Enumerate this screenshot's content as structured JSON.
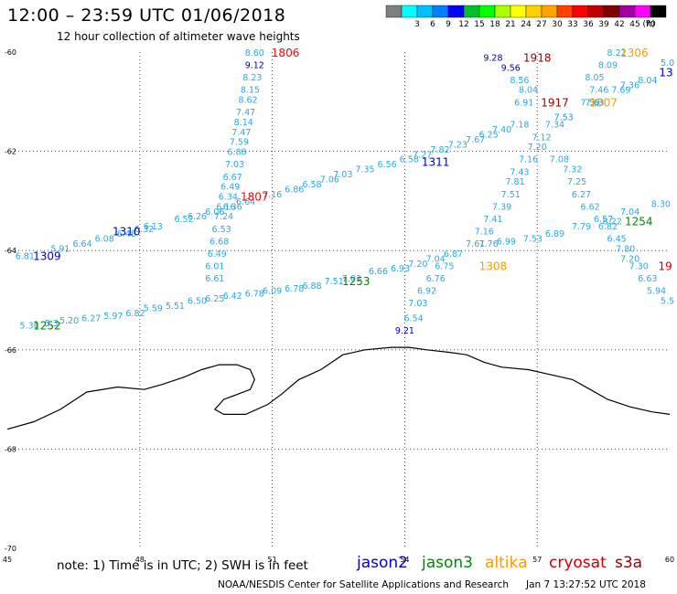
{
  "header": {
    "title": "12:00 – 23:59 UTC 01/06/2018",
    "subtitle": "12 hour collection of altimeter wave heights"
  },
  "colorbar": {
    "unit": "(ft)",
    "bins": [
      {
        "label": "",
        "color": "#7f7f7f"
      },
      {
        "label": "3",
        "color": "#00ffff"
      },
      {
        "label": "6",
        "color": "#00bfff"
      },
      {
        "label": "9",
        "color": "#007fff"
      },
      {
        "label": "12",
        "color": "#0000ff"
      },
      {
        "label": "15",
        "color": "#00c030"
      },
      {
        "label": "18",
        "color": "#00ff00"
      },
      {
        "label": "21",
        "color": "#aaff00"
      },
      {
        "label": "24",
        "color": "#ffff00"
      },
      {
        "label": "27",
        "color": "#ffd000"
      },
      {
        "label": "30",
        "color": "#ffa500"
      },
      {
        "label": "33",
        "color": "#ff4000"
      },
      {
        "label": "36",
        "color": "#ff0000"
      },
      {
        "label": "39",
        "color": "#c00000"
      },
      {
        "label": "42",
        "color": "#800000"
      },
      {
        "label": "45",
        "color": "#a000a0"
      },
      {
        "label": "70",
        "color": "#ff00ff"
      },
      {
        "label": "",
        "color": "#000000"
      }
    ]
  },
  "axes": {
    "lon_labels": [
      "45",
      "48",
      "51",
      "54",
      "57",
      "60"
    ],
    "lat_labels": [
      "-60",
      "-62",
      "-64",
      "-66",
      "-68",
      "-70"
    ],
    "lon_values": [
      45,
      48,
      51,
      54,
      57,
      60
    ],
    "lat_values": [
      -60,
      -62,
      -64,
      -66,
      -68,
      -70
    ]
  },
  "footer": {
    "note": "note: 1) Time is in UTC; 2) SWH is in feet",
    "credit": "NOAA/NESDIS Center for Satellite Applications and Research",
    "timestamp": "Jan  7 13:27:52 UTC 2018"
  },
  "legend": [
    {
      "name": "jason2",
      "color": "#0000cc"
    },
    {
      "name": "jason3",
      "color": "#008800"
    },
    {
      "name": "altika",
      "color": "#ff9900"
    },
    {
      "name": "cryosat",
      "color": "#cc0000"
    },
    {
      "name": "s3a",
      "color": "#990000"
    }
  ],
  "pass_labels": [
    {
      "text": "1806",
      "lon": 51.3,
      "lat": -60.0,
      "color": "#ff0000"
    },
    {
      "text": "1807",
      "lon": 50.6,
      "lat": -62.9,
      "color": "#ff0000"
    },
    {
      "text": "1310",
      "lon": 47.7,
      "lat": -63.6,
      "color": "#0000cc"
    },
    {
      "text": "1309",
      "lon": 45.9,
      "lat": -64.1,
      "color": "#0000cc"
    },
    {
      "text": "1252",
      "lon": 45.9,
      "lat": -65.5,
      "color": "#008800"
    },
    {
      "text": "1253",
      "lon": 52.9,
      "lat": -64.6,
      "color": "#008800"
    },
    {
      "text": "1311",
      "lon": 54.7,
      "lat": -62.2,
      "color": "#0000cc"
    },
    {
      "text": "1308",
      "lon": 56.0,
      "lat": -64.3,
      "color": "#ff9900"
    },
    {
      "text": "1918",
      "lon": 57.0,
      "lat": -60.1,
      "color": "#990000"
    },
    {
      "text": "1917",
      "lon": 57.4,
      "lat": -61.0,
      "color": "#990000"
    },
    {
      "text": "1307",
      "lon": 58.5,
      "lat": -61.0,
      "color": "#ff9900"
    },
    {
      "text": "1306",
      "lon": 59.2,
      "lat": -60.0,
      "color": "#ff9900"
    },
    {
      "text": "13",
      "lon": 59.95,
      "lat": -60.4,
      "color": "#0000cc"
    },
    {
      "text": "1254",
      "lon": 59.3,
      "lat": -63.4,
      "color": "#008800"
    },
    {
      "text": "19",
      "lon": 59.9,
      "lat": -64.3,
      "color": "#cc0000"
    }
  ],
  "tracks": [
    {
      "color": "#2aa8e0",
      "points": [
        {
          "v": "8.60",
          "lon": 50.6,
          "lat": -60.0
        },
        {
          "v": "9.12",
          "lon": 50.6,
          "lat": -60.25,
          "c": "#0000aa"
        },
        {
          "v": "8.23",
          "lon": 50.55,
          "lat": -60.5
        },
        {
          "v": "8.15",
          "lon": 50.5,
          "lat": -60.75
        },
        {
          "v": "8.62",
          "lon": 50.45,
          "lat": -60.95
        },
        {
          "v": "7.47",
          "lon": 50.4,
          "lat": -61.2
        },
        {
          "v": "8.14",
          "lon": 50.35,
          "lat": -61.4
        },
        {
          "v": "7.47",
          "lon": 50.3,
          "lat": -61.6
        },
        {
          "v": "7.59",
          "lon": 50.25,
          "lat": -61.8
        },
        {
          "v": "6.88",
          "lon": 50.2,
          "lat": -62.0
        },
        {
          "v": "7.03",
          "lon": 50.15,
          "lat": -62.25
        },
        {
          "v": "6.67",
          "lon": 50.1,
          "lat": -62.5
        },
        {
          "v": "6.49",
          "lon": 50.05,
          "lat": -62.7
        },
        {
          "v": "6.34",
          "lon": 50.0,
          "lat": -62.9
        },
        {
          "v": "6.16",
          "lon": 49.95,
          "lat": -63.1
        },
        {
          "v": "7.24",
          "lon": 49.9,
          "lat": -63.3
        },
        {
          "v": "6.53",
          "lon": 49.85,
          "lat": -63.55
        },
        {
          "v": "6.68",
          "lon": 49.8,
          "lat": -63.8
        },
        {
          "v": "6.49",
          "lon": 49.75,
          "lat": -64.05
        },
        {
          "v": "6.01",
          "lon": 49.7,
          "lat": -64.3
        },
        {
          "v": "6.61",
          "lon": 49.7,
          "lat": -64.55
        }
      ]
    },
    {
      "color": "#2aa8e0",
      "points": [
        {
          "v": "6.81",
          "lon": 45.4,
          "lat": -64.1
        },
        {
          "v": "5.91",
          "lon": 46.2,
          "lat": -63.95
        },
        {
          "v": "6.64",
          "lon": 46.7,
          "lat": -63.85
        },
        {
          "v": "6.08",
          "lon": 47.2,
          "lat": -63.75
        },
        {
          "v": "6.48",
          "lon": 47.7,
          "lat": -63.65
        },
        {
          "v": "6.32",
          "lon": 48.1,
          "lat": -63.55
        },
        {
          "v": "6.13",
          "lon": 48.3,
          "lat": -63.5
        },
        {
          "v": "6.52",
          "lon": 49.0,
          "lat": -63.35
        },
        {
          "v": "6.26",
          "lon": 49.3,
          "lat": -63.3
        },
        {
          "v": "6.06",
          "lon": 49.7,
          "lat": -63.2
        },
        {
          "v": "6.36",
          "lon": 50.1,
          "lat": -63.1
        },
        {
          "v": "6.64",
          "lon": 50.4,
          "lat": -63.0
        },
        {
          "v": "7.16",
          "lon": 51.0,
          "lat": -62.85
        },
        {
          "v": "6.86",
          "lon": 51.5,
          "lat": -62.75
        },
        {
          "v": "6.58",
          "lon": 51.9,
          "lat": -62.65
        },
        {
          "v": "7.06",
          "lon": 52.3,
          "lat": -62.55
        },
        {
          "v": "7.03",
          "lon": 52.6,
          "lat": -62.45
        },
        {
          "v": "7.35",
          "lon": 53.1,
          "lat": -62.35
        },
        {
          "v": "6.56",
          "lon": 53.6,
          "lat": -62.25
        },
        {
          "v": "6.58",
          "lon": 54.1,
          "lat": -62.15
        },
        {
          "v": "7.27",
          "lon": 54.4,
          "lat": -62.05
        },
        {
          "v": "7.82",
          "lon": 54.8,
          "lat": -61.95
        },
        {
          "v": "7.23",
          "lon": 55.2,
          "lat": -61.85
        },
        {
          "v": "7.67",
          "lon": 55.6,
          "lat": -61.75
        },
        {
          "v": "6.25",
          "lon": 55.9,
          "lat": -61.65
        },
        {
          "v": "7.40",
          "lon": 56.2,
          "lat": -61.55
        },
        {
          "v": "7.18",
          "lon": 56.6,
          "lat": -61.45
        },
        {
          "v": "7.34",
          "lon": 57.4,
          "lat": -61.45
        },
        {
          "v": "7.53",
          "lon": 57.6,
          "lat": -61.3
        },
        {
          "v": "7.58",
          "lon": 58.2,
          "lat": -61.0
        },
        {
          "v": "7.69",
          "lon": 58.9,
          "lat": -60.75
        },
        {
          "v": "7.36",
          "lon": 59.1,
          "lat": -60.65
        },
        {
          "v": "8.04",
          "lon": 59.5,
          "lat": -60.55
        },
        {
          "v": "5.0",
          "lon": 59.95,
          "lat": -60.2
        }
      ]
    },
    {
      "color": "#2aa8e0",
      "points": [
        {
          "v": "5.30",
          "lon": 45.5,
          "lat": -65.5
        },
        {
          "v": "5.3",
          "lon": 46.0,
          "lat": -65.45
        },
        {
          "v": "5.20",
          "lon": 46.4,
          "lat": -65.4
        },
        {
          "v": "6.27",
          "lon": 46.9,
          "lat": -65.35
        },
        {
          "v": "5.97",
          "lon": 47.4,
          "lat": -65.3
        },
        {
          "v": "6.82",
          "lon": 47.9,
          "lat": -65.25
        },
        {
          "v": "5.59",
          "lon": 48.3,
          "lat": -65.15
        },
        {
          "v": "5.51",
          "lon": 48.8,
          "lat": -65.1
        },
        {
          "v": "6.50",
          "lon": 49.3,
          "lat": -65.0
        },
        {
          "v": "6.25",
          "lon": 49.7,
          "lat": -64.95
        },
        {
          "v": "6.42",
          "lon": 50.1,
          "lat": -64.9
        },
        {
          "v": "6.78",
          "lon": 50.6,
          "lat": -64.85
        },
        {
          "v": "6.09",
          "lon": 51.0,
          "lat": -64.8
        },
        {
          "v": "6.78",
          "lon": 51.5,
          "lat": -64.75
        },
        {
          "v": "6.88",
          "lon": 51.9,
          "lat": -64.7
        },
        {
          "v": "7.51",
          "lon": 52.4,
          "lat": -64.6
        },
        {
          "v": "7.03",
          "lon": 52.8,
          "lat": -64.55
        },
        {
          "v": "6.66",
          "lon": 53.4,
          "lat": -64.4
        },
        {
          "v": "6.93",
          "lon": 53.9,
          "lat": -64.35
        },
        {
          "v": "7.20",
          "lon": 54.3,
          "lat": -64.25
        },
        {
          "v": "7.04",
          "lon": 54.7,
          "lat": -64.15
        },
        {
          "v": "6.87",
          "lon": 55.1,
          "lat": -64.05
        },
        {
          "v": "7.76",
          "lon": 55.9,
          "lat": -63.85
        },
        {
          "v": "6.99",
          "lon": 56.3,
          "lat": -63.8
        },
        {
          "v": "7.53",
          "lon": 56.9,
          "lat": -63.75
        },
        {
          "v": "6.89",
          "lon": 57.4,
          "lat": -63.65
        },
        {
          "v": "7.79",
          "lon": 58.0,
          "lat": -63.5
        },
        {
          "v": "8.22",
          "lon": 58.7,
          "lat": -63.4
        },
        {
          "v": "7.04",
          "lon": 59.1,
          "lat": -63.2
        },
        {
          "v": "8.30",
          "lon": 59.8,
          "lat": -63.05
        }
      ]
    },
    {
      "color": "#2aa8e0",
      "points": [
        {
          "v": "9.21",
          "lon": 54.0,
          "lat": -65.6,
          "c": "#0000aa"
        },
        {
          "v": "6.54",
          "lon": 54.2,
          "lat": -65.35
        },
        {
          "v": "7.03",
          "lon": 54.3,
          "lat": -65.05
        },
        {
          "v": "6.92",
          "lon": 54.5,
          "lat": -64.8
        },
        {
          "v": "6.76",
          "lon": 54.7,
          "lat": -64.55
        },
        {
          "v": "6.75",
          "lon": 54.9,
          "lat": -64.3
        },
        {
          "v": "7.61",
          "lon": 55.6,
          "lat": -63.85
        },
        {
          "v": "7.16",
          "lon": 55.8,
          "lat": -63.6
        },
        {
          "v": "7.41",
          "lon": 56.0,
          "lat": -63.35
        },
        {
          "v": "7.39",
          "lon": 56.2,
          "lat": -63.1
        },
        {
          "v": "7.51",
          "lon": 56.4,
          "lat": -62.85
        },
        {
          "v": "7.81",
          "lon": 56.5,
          "lat": -62.6
        },
        {
          "v": "7.43",
          "lon": 56.6,
          "lat": -62.4
        },
        {
          "v": "7.16",
          "lon": 56.8,
          "lat": -62.15
        },
        {
          "v": "7.20",
          "lon": 57.0,
          "lat": -61.9
        },
        {
          "v": "7.12",
          "lon": 57.1,
          "lat": -61.7
        },
        {
          "v": "6.91",
          "lon": 56.7,
          "lat": -61.0
        },
        {
          "v": "8.04",
          "lon": 56.8,
          "lat": -60.75
        },
        {
          "v": "8.56",
          "lon": 56.6,
          "lat": -60.55
        },
        {
          "v": "9.56",
          "lon": 56.4,
          "lat": -60.3,
          "c": "#0000aa"
        },
        {
          "v": "9.28",
          "lon": 56.0,
          "lat": -60.1,
          "c": "#0000aa"
        }
      ]
    },
    {
      "color": "#2aa8e0",
      "points": [
        {
          "v": "7.08",
          "lon": 57.5,
          "lat": -62.15
        },
        {
          "v": "7.32",
          "lon": 57.8,
          "lat": -62.35
        },
        {
          "v": "7.25",
          "lon": 57.9,
          "lat": -62.6
        },
        {
          "v": "6.27",
          "lon": 58.0,
          "lat": -62.85
        },
        {
          "v": "6.62",
          "lon": 58.2,
          "lat": -63.1
        },
        {
          "v": "6.57",
          "lon": 58.5,
          "lat": -63.35
        },
        {
          "v": "6.82",
          "lon": 58.6,
          "lat": -63.5
        },
        {
          "v": "6.45",
          "lon": 58.8,
          "lat": -63.75
        },
        {
          "v": "7.80",
          "lon": 59.0,
          "lat": -63.95
        },
        {
          "v": "7.20",
          "lon": 59.1,
          "lat": -64.15
        },
        {
          "v": "7.30",
          "lon": 59.3,
          "lat": -64.3
        },
        {
          "v": "6.63",
          "lon": 59.5,
          "lat": -64.55
        },
        {
          "v": "5.94",
          "lon": 59.7,
          "lat": -64.8
        },
        {
          "v": "5.5",
          "lon": 59.95,
          "lat": -65.0
        }
      ]
    },
    {
      "color": "#2aa8e0",
      "points": [
        {
          "v": "8.22",
          "lon": 58.8,
          "lat": -60.0
        },
        {
          "v": "8.09",
          "lon": 58.6,
          "lat": -60.25
        },
        {
          "v": "8.05",
          "lon": 58.3,
          "lat": -60.5
        },
        {
          "v": "7.46",
          "lon": 58.4,
          "lat": -60.75
        },
        {
          "v": "7.63",
          "lon": 58.3,
          "lat": -61.0
        },
        {
          "v": "7.53",
          "lon": 57.6,
          "lat": -61.3
        }
      ]
    }
  ],
  "coastline": {
    "points": [
      {
        "lon": 45.0,
        "lat": -67.6
      },
      {
        "lon": 45.6,
        "lat": -67.45
      },
      {
        "lon": 46.2,
        "lat": -67.2
      },
      {
        "lon": 46.8,
        "lat": -66.85
      },
      {
        "lon": 47.5,
        "lat": -66.75
      },
      {
        "lon": 48.1,
        "lat": -66.8
      },
      {
        "lon": 48.5,
        "lat": -66.7
      },
      {
        "lon": 49.0,
        "lat": -66.55
      },
      {
        "lon": 49.4,
        "lat": -66.4
      },
      {
        "lon": 49.8,
        "lat": -66.3
      },
      {
        "lon": 50.2,
        "lat": -66.3
      },
      {
        "lon": 50.5,
        "lat": -66.4
      },
      {
        "lon": 50.6,
        "lat": -66.6
      },
      {
        "lon": 50.5,
        "lat": -66.8
      },
      {
        "lon": 50.2,
        "lat": -66.9
      },
      {
        "lon": 49.9,
        "lat": -67.0
      },
      {
        "lon": 49.7,
        "lat": -67.2
      },
      {
        "lon": 49.9,
        "lat": -67.3
      },
      {
        "lon": 50.4,
        "lat": -67.3
      },
      {
        "lon": 50.9,
        "lat": -67.1
      },
      {
        "lon": 51.2,
        "lat": -66.9
      },
      {
        "lon": 51.6,
        "lat": -66.6
      },
      {
        "lon": 52.1,
        "lat": -66.4
      },
      {
        "lon": 52.6,
        "lat": -66.1
      },
      {
        "lon": 53.1,
        "lat": -66.0
      },
      {
        "lon": 53.7,
        "lat": -65.95
      },
      {
        "lon": 54.1,
        "lat": -65.95
      },
      {
        "lon": 54.5,
        "lat": -66.0
      },
      {
        "lon": 55.0,
        "lat": -66.05
      },
      {
        "lon": 55.4,
        "lat": -66.1
      },
      {
        "lon": 55.8,
        "lat": -66.25
      },
      {
        "lon": 56.2,
        "lat": -66.35
      },
      {
        "lon": 56.8,
        "lat": -66.4
      },
      {
        "lon": 57.3,
        "lat": -66.5
      },
      {
        "lon": 57.8,
        "lat": -66.6
      },
      {
        "lon": 58.2,
        "lat": -66.8
      },
      {
        "lon": 58.6,
        "lat": -67.0
      },
      {
        "lon": 59.1,
        "lat": -67.15
      },
      {
        "lon": 59.6,
        "lat": -67.25
      },
      {
        "lon": 60.0,
        "lat": -67.3
      }
    ]
  }
}
